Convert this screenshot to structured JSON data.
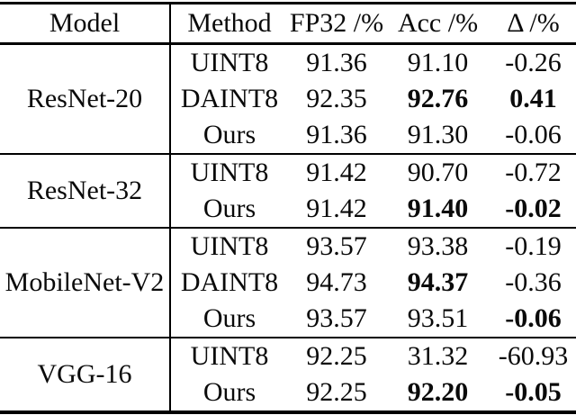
{
  "table": {
    "headers": {
      "model": "Model",
      "method": "Method",
      "fp32": "FP32 /%",
      "acc": "Acc /%",
      "delta": "Δ /%"
    },
    "sections": [
      {
        "model": "ResNet-20",
        "rows": [
          {
            "method": "UINT8",
            "fp32": "91.36",
            "acc": "91.10",
            "delta": "-0.26"
          },
          {
            "method": "DAINT8",
            "fp32": "92.35",
            "acc": "92.76",
            "delta": "0.41"
          },
          {
            "method": "Ours",
            "fp32": "91.36",
            "acc": "91.30",
            "delta": "-0.06"
          }
        ]
      },
      {
        "model": "ResNet-32",
        "rows": [
          {
            "method": "UINT8",
            "fp32": "91.42",
            "acc": "90.70",
            "delta": "-0.72"
          },
          {
            "method": "Ours",
            "fp32": "91.42",
            "acc": "91.40",
            "delta": "-0.02"
          }
        ]
      },
      {
        "model": "MobileNet-V2",
        "rows": [
          {
            "method": "UINT8",
            "fp32": "93.57",
            "acc": "93.38",
            "delta": "-0.19"
          },
          {
            "method": "DAINT8",
            "fp32": "94.73",
            "acc": "94.37",
            "delta": "-0.36"
          },
          {
            "method": "Ours",
            "fp32": "93.57",
            "acc": "93.51",
            "delta": "-0.06"
          }
        ]
      },
      {
        "model": "VGG-16",
        "rows": [
          {
            "method": "UINT8",
            "fp32": "92.25",
            "acc": "31.32",
            "delta": "-60.93"
          },
          {
            "method": "Ours",
            "fp32": "92.25",
            "acc": "92.20",
            "delta": "-0.05"
          }
        ]
      }
    ]
  }
}
